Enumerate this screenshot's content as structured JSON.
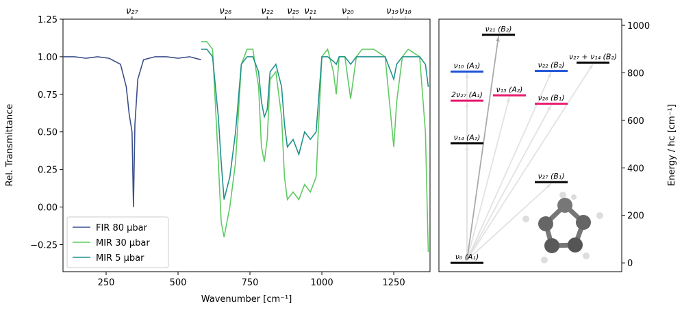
{
  "chart_data": [
    {
      "type": "line",
      "xlabel": "Wavenumber [cm⁻¹]",
      "ylabel": "Rel. Transmittance",
      "xlim": [
        100,
        1376
      ],
      "ylim": [
        -0.43,
        1.25
      ],
      "xticks": [
        250,
        500,
        750,
        1000,
        1250
      ],
      "yticks": [
        {
          "value": -0.25,
          "label": "−0.25"
        },
        {
          "value": 0,
          "label": "0.00"
        },
        0.25,
        {
          "value": 0.5,
          "label": "0.50"
        },
        0.75,
        {
          "value": 1,
          "label": "1.00"
        },
        1.25
      ],
      "top_ticks": [
        {
          "value": 340,
          "label": "ν₂₇",
          "color": "#000000"
        },
        {
          "value": 665,
          "label": "ν₂₆",
          "color": "#000000"
        },
        {
          "value": 810,
          "label": "ν₂₂",
          "color": "#000000"
        },
        {
          "value": 900,
          "label": "ν₂₅",
          "color": "#888888"
        },
        {
          "value": 960,
          "label": "ν₂₁",
          "color": "#000000"
        },
        {
          "value": 1090,
          "label": "ν₂₀",
          "color": "#888888"
        },
        {
          "value": 1245,
          "label": "ν₁₉",
          "color": "#888888"
        },
        {
          "value": 1290,
          "label": "ν₁₈",
          "color": "#888888"
        }
      ],
      "legend": "lower left",
      "series": [
        {
          "name": "FIR 80 µbar",
          "color": "#3b4f8a",
          "x": [
            100,
            140,
            180,
            220,
            260,
            300,
            320,
            330,
            340,
            345,
            350,
            360,
            380,
            420,
            460,
            500,
            540,
            580
          ],
          "values": [
            1.0,
            1.0,
            0.99,
            1.0,
            0.99,
            0.95,
            0.8,
            0.62,
            0.5,
            0.0,
            0.55,
            0.85,
            0.98,
            1.0,
            1.0,
            0.99,
            1.0,
            0.98
          ]
        },
        {
          "name": "MIR 30 µbar",
          "color": "#5fca62",
          "x": [
            580,
            600,
            620,
            640,
            650,
            660,
            680,
            700,
            720,
            740,
            760,
            780,
            790,
            800,
            810,
            820,
            840,
            860,
            870,
            880,
            900,
            920,
            940,
            960,
            980,
            1000,
            1020,
            1040,
            1050,
            1060,
            1080,
            1100,
            1120,
            1140,
            1180,
            1220,
            1240,
            1250,
            1260,
            1280,
            1300,
            1340,
            1360,
            1370
          ],
          "values": [
            1.1,
            1.1,
            1.05,
            0.3,
            -0.1,
            -0.2,
            0.0,
            0.3,
            0.95,
            1.05,
            1.05,
            0.8,
            0.4,
            0.3,
            0.45,
            0.85,
            0.9,
            0.6,
            0.2,
            0.05,
            0.1,
            0.05,
            0.15,
            0.1,
            0.2,
            1.0,
            1.05,
            0.9,
            0.75,
            1.0,
            1.0,
            0.72,
            1.0,
            1.05,
            1.05,
            1.0,
            0.6,
            0.4,
            0.7,
            1.0,
            1.05,
            1.0,
            0.5,
            -0.3
          ]
        },
        {
          "name": "MIR 5 µbar",
          "color": "#21918c",
          "x": [
            580,
            600,
            620,
            640,
            650,
            660,
            680,
            700,
            720,
            740,
            760,
            780,
            790,
            800,
            810,
            820,
            840,
            860,
            870,
            880,
            900,
            920,
            940,
            960,
            980,
            1000,
            1020,
            1040,
            1050,
            1060,
            1080,
            1100,
            1120,
            1140,
            1180,
            1220,
            1240,
            1250,
            1260,
            1280,
            1300,
            1340,
            1360,
            1370
          ],
          "values": [
            1.05,
            1.05,
            1.0,
            0.6,
            0.3,
            0.05,
            0.2,
            0.5,
            0.95,
            1.0,
            1.0,
            0.9,
            0.7,
            0.6,
            0.65,
            0.9,
            0.95,
            0.8,
            0.55,
            0.4,
            0.45,
            0.35,
            0.5,
            0.45,
            0.5,
            1.0,
            1.0,
            0.97,
            0.95,
            1.0,
            1.0,
            0.95,
            1.0,
            1.0,
            1.0,
            1.0,
            0.9,
            0.85,
            0.95,
            1.0,
            1.0,
            1.0,
            0.95,
            0.8
          ]
        }
      ]
    },
    {
      "type": "levels",
      "ylabel": "Energy / hc [cm⁻¹]",
      "ylim": [
        -37,
        1026
      ],
      "yticks": [
        0,
        200,
        400,
        600,
        800,
        1000
      ],
      "levels": [
        {
          "label": "ν₀ (A₁)",
          "energy": 0,
          "color": "#000000"
        },
        {
          "label": "ν₂₇ (B₁)",
          "energy": 340,
          "color": "#000000"
        },
        {
          "label": "ν₁₄ (A₂)",
          "energy": 503,
          "color": "#000000"
        },
        {
          "label": "2ν₂₇ (A₁)",
          "energy": 683,
          "color": "#e6186e"
        },
        {
          "label": "ν₁₃ (A₂)",
          "energy": 705,
          "color": "#e6186e"
        },
        {
          "label": "ν₂₆ (B₁)",
          "energy": 670,
          "color": "#e6186e"
        },
        {
          "label": "ν₁₀ (A₁)",
          "energy": 805,
          "color": "#1a4fd6"
        },
        {
          "label": "ν₂₂ (B₂)",
          "energy": 808,
          "color": "#1a4fd6"
        },
        {
          "label": "ν₂₇ + ν₁₄ (B₂)",
          "energy": 843,
          "color": "#000000"
        },
        {
          "label": "ν₂₁ (B₂)",
          "energy": 960,
          "color": "#000000"
        }
      ]
    }
  ]
}
